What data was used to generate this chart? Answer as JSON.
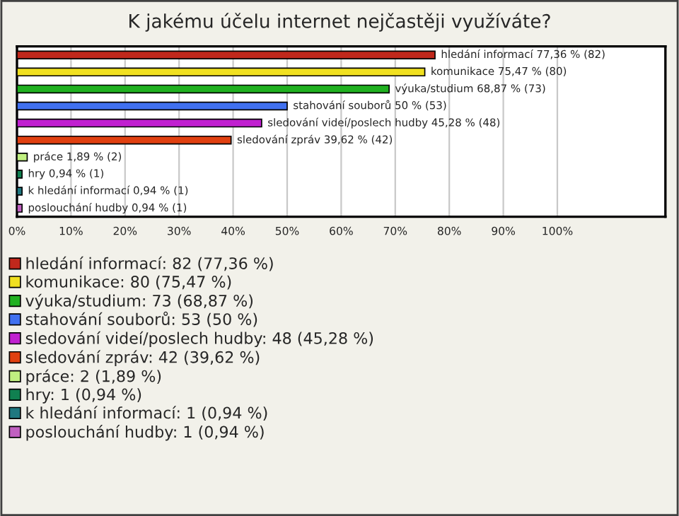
{
  "chart_data": {
    "type": "bar",
    "orientation": "horizontal",
    "title": "K jakému účelu internet nejčastěji využíváte?",
    "categories": [
      null,
      null,
      null,
      null,
      null,
      null,
      null,
      null,
      null,
      null
    ],
    "series": [
      {
        "name": "hledání informací: 82 (77,36 %)",
        "color": "#c0281c",
        "values": [
          77.36,
          null,
          null,
          null,
          null,
          null,
          null,
          null,
          null,
          null
        ],
        "value_labels": [
          "hledání informací 77,36 % (82)",
          null,
          null,
          null,
          null,
          null,
          null,
          null,
          null,
          null
        ]
      },
      {
        "name": "komunikace: 80 (75,47 %)",
        "color": "#f0e020",
        "values": [
          null,
          75.47,
          null,
          null,
          null,
          null,
          null,
          null,
          null,
          null
        ],
        "value_labels": [
          null,
          "komunikace 75,47 % (80)",
          null,
          null,
          null,
          null,
          null,
          null,
          null,
          null
        ]
      },
      {
        "name": "výuka/studium: 73 (68,87 %)",
        "color": "#20b020",
        "values": [
          null,
          null,
          68.87,
          null,
          null,
          null,
          null,
          null,
          null,
          null
        ],
        "value_labels": [
          null,
          null,
          "výuka/studium 68,87 % (73)",
          null,
          null,
          null,
          null,
          null,
          null,
          null
        ]
      },
      {
        "name": "stahování souborů: 53 (50 %)",
        "color": "#4070f0",
        "values": [
          null,
          null,
          null,
          50,
          null,
          null,
          null,
          null,
          null,
          null
        ],
        "value_labels": [
          null,
          null,
          null,
          "stahování souborů 50 % (53)",
          null,
          null,
          null,
          null,
          null,
          null
        ]
      },
      {
        "name": "sledování videí/poslech hudby: 48 (45,28 %)",
        "color": "#c020d0",
        "values": [
          null,
          null,
          null,
          null,
          45.28,
          null,
          null,
          null,
          null,
          null
        ],
        "value_labels": [
          null,
          null,
          null,
          null,
          "sledování videí/poslech hudby 45,28 % (48)",
          null,
          null,
          null,
          null,
          null
        ]
      },
      {
        "name": "sledování zpráv: 42 (39,62 %)",
        "color": "#e04010",
        "values": [
          null,
          null,
          null,
          null,
          null,
          39.62,
          null,
          null,
          null,
          null
        ],
        "value_labels": [
          null,
          null,
          null,
          null,
          null,
          "sledování zpráv 39,62 % (42)",
          null,
          null,
          null,
          null
        ]
      },
      {
        "name": "práce: 2 (1,89 %)",
        "color": "#c0f080",
        "values": [
          null,
          null,
          null,
          null,
          null,
          null,
          1.89,
          null,
          null,
          null
        ],
        "value_labels": [
          null,
          null,
          null,
          null,
          null,
          null,
          "práce 1,89 % (2)",
          null,
          null,
          null
        ]
      },
      {
        "name": "hry: 1 (0,94 %)",
        "color": "#108050",
        "values": [
          null,
          null,
          null,
          null,
          null,
          null,
          null,
          0.94,
          null,
          null
        ],
        "value_labels": [
          null,
          null,
          null,
          null,
          null,
          null,
          null,
          "hry 0,94 % (1)",
          null,
          null
        ]
      },
      {
        "name": "k hledání informací: 1 (0,94 %)",
        "color": "#207880",
        "values": [
          null,
          null,
          null,
          null,
          null,
          null,
          null,
          null,
          0.94,
          null
        ],
        "value_labels": [
          null,
          null,
          null,
          null,
          null,
          null,
          null,
          null,
          "k hledání informací 0,94 % (1)",
          null
        ]
      },
      {
        "name": "poslouchání hudby: 1 (0,94 %)",
        "color": "#c060c0",
        "values": [
          null,
          null,
          null,
          null,
          null,
          null,
          null,
          null,
          null,
          0.94
        ],
        "value_labels": [
          null,
          null,
          null,
          null,
          null,
          null,
          null,
          null,
          null,
          "poslouchání hudby 0,94 % (1)"
        ]
      }
    ],
    "xlim": [
      0,
      120
    ],
    "xticks": [
      {
        "value": 0,
        "label": "0%"
      },
      {
        "value": 10,
        "label": "10%"
      },
      {
        "value": 20,
        "label": "20%"
      },
      {
        "value": 30,
        "label": "30%"
      },
      {
        "value": 40,
        "label": "40%"
      },
      {
        "value": 50,
        "label": "50%"
      },
      {
        "value": 60,
        "label": "60%"
      },
      {
        "value": 70,
        "label": "70%"
      },
      {
        "value": 80,
        "label": "80%"
      },
      {
        "value": 90,
        "label": "90%"
      },
      {
        "value": 100,
        "label": "100%"
      }
    ],
    "grid": "x",
    "tick_labels": "x",
    "legend": "bottom"
  }
}
